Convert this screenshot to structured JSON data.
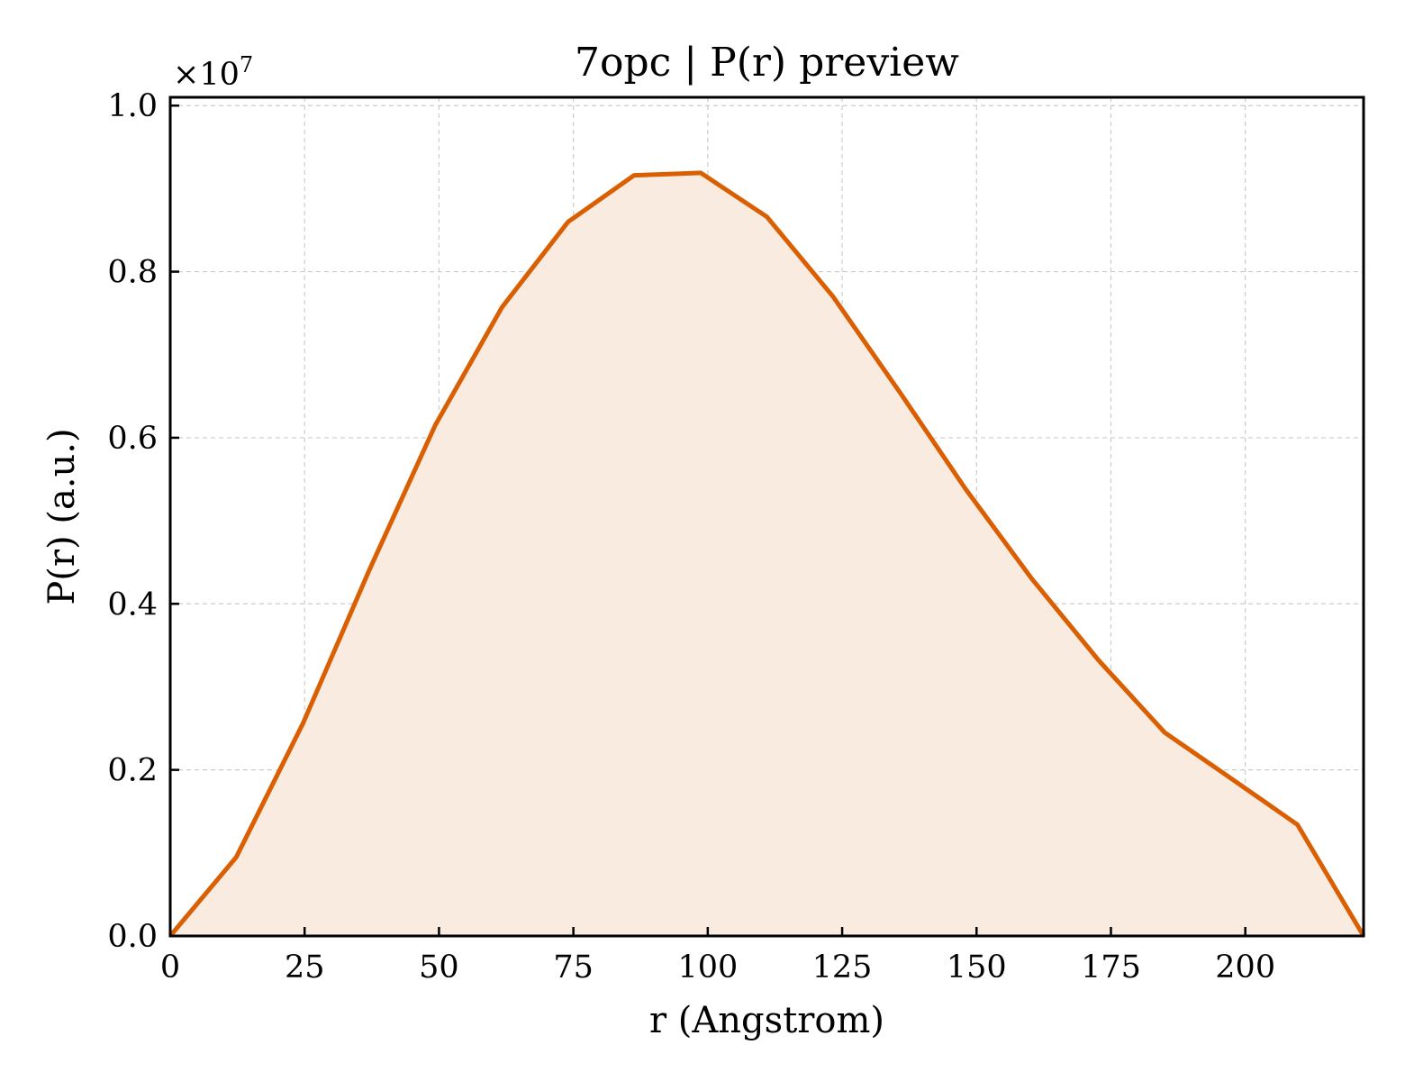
{
  "chart_data": {
    "type": "area",
    "title": "7opc | P(r) preview",
    "xlabel": "r (Angstrom)",
    "ylabel": "P(r) (a.u.)",
    "y_offset_label": "×10",
    "y_offset_exponent": "7",
    "y_multiplier": 10000000,
    "xlim": [
      0,
      222
    ],
    "ylim": [
      0,
      1.01
    ],
    "xticks": [
      0,
      25,
      50,
      75,
      100,
      125,
      150,
      175,
      200
    ],
    "xtick_labels": [
      "0",
      "25",
      "50",
      "75",
      "100",
      "125",
      "150",
      "175",
      "200"
    ],
    "yticks": [
      0.0,
      0.2,
      0.4,
      0.6,
      0.8,
      1.0
    ],
    "ytick_labels": [
      "0.0",
      "0.2",
      "0.4",
      "0.6",
      "0.8",
      "1.0"
    ],
    "grid": true,
    "line_color": "#d95f02",
    "fill_color": "#f9ebe0",
    "series": [
      {
        "x": [
          0,
          12.3,
          24.7,
          37,
          49.3,
          61.7,
          74,
          86.3,
          98.7,
          111,
          123.3,
          135.7,
          148,
          160.3,
          172.7,
          185,
          197.3,
          209.7,
          222
        ],
        "values": [
          0.0,
          0.095,
          0.256,
          0.44,
          0.615,
          0.757,
          0.86,
          0.916,
          0.919,
          0.866,
          0.77,
          0.655,
          0.538,
          0.43,
          0.332,
          0.245,
          0.19,
          0.134,
          0.0
        ]
      }
    ]
  }
}
